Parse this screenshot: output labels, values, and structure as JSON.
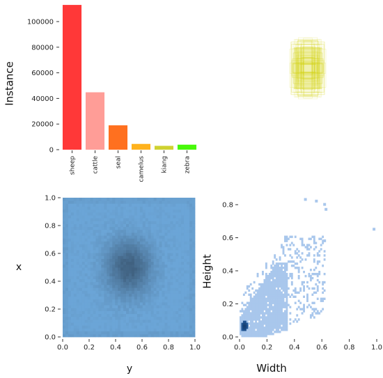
{
  "chart_data": [
    {
      "type": "bar",
      "ylabel": "Instance",
      "ylim": [
        0,
        120000
      ],
      "yticks": [
        "0",
        "20000",
        "40000",
        "60000",
        "80000",
        "100000"
      ],
      "categories": [
        "sheep",
        "cattle",
        "seal",
        "camelus",
        "kiang",
        "zebra"
      ],
      "values": [
        113000,
        44800,
        19000,
        4500,
        3000,
        3900
      ],
      "colors": [
        "#ff3838",
        "#ff9d97",
        "#ff701f",
        "#ffb21d",
        "#cfd231",
        "#48f90a"
      ]
    },
    {
      "type": "scatter",
      "description_free": true,
      "box_color": "#d4d416",
      "center": [
        0.5,
        0.5
      ]
    },
    {
      "type": "heatmap",
      "xlabel": "y",
      "ylabel": "x",
      "xlim": [
        0,
        1
      ],
      "ylim": [
        0,
        1
      ],
      "xticks": [
        "0.0",
        "0.2",
        "0.4",
        "0.6",
        "0.8",
        "1.0"
      ],
      "yticks": [
        "0.0",
        "0.2",
        "0.4",
        "0.6",
        "0.8",
        "1.0"
      ],
      "peak": [
        0.5,
        0.5
      ]
    },
    {
      "type": "heatmap",
      "xlabel": "Width",
      "ylabel": "Height",
      "xlim": [
        0,
        1
      ],
      "ylim": [
        0,
        0.88
      ],
      "xticks": [
        "0.0",
        "0.2",
        "0.4",
        "0.6",
        "0.8",
        "1.0"
      ],
      "yticks": [
        "0.0",
        "0.2",
        "0.4",
        "0.6",
        "0.8"
      ],
      "peak": [
        0.03,
        0.05
      ]
    }
  ]
}
